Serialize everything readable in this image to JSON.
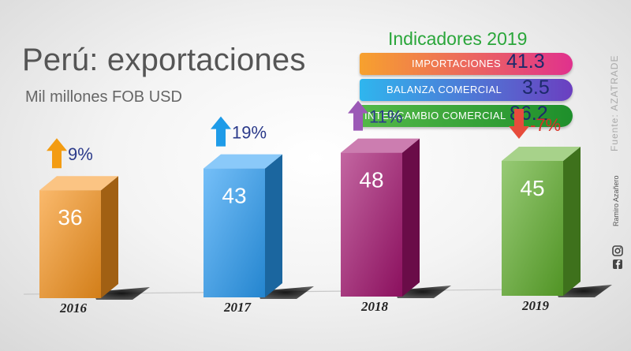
{
  "title": "Perú: exportaciones",
  "subtitle": "Mil millones FOB USD",
  "indicators": {
    "header": "Indicadores 2019",
    "items": [
      {
        "label": "IMPORTACIONES",
        "value": "41.3",
        "color_from": "#f7a12e",
        "color_to": "#e0318d"
      },
      {
        "label": "BALANZA COMERCIAL",
        "value": "3.5",
        "color_from": "#2fb6ee",
        "color_to": "#6b3fc0"
      },
      {
        "label": "INTERCAMBIO COMERCIAL",
        "value": "86.2",
        "color_from": "#54b948",
        "color_to": "#1e8f2b"
      }
    ]
  },
  "source": "Fuente: AZATRADE",
  "author": "Ramiro Azañero",
  "icons": [
    "facebook-icon",
    "instagram-icon"
  ],
  "chart_data": {
    "type": "bar",
    "categories": [
      "2016",
      "2017",
      "2018",
      "2019"
    ],
    "values": [
      36,
      43,
      48,
      45
    ],
    "changes": [
      "9%",
      "19%",
      "11%",
      "-7%"
    ],
    "change_direction": [
      "up",
      "up",
      "up",
      "down"
    ],
    "colors": [
      "#f7941d",
      "#2a9df4",
      "#a3136f",
      "#5fae2b"
    ],
    "arrow_colors": [
      "#f39c12",
      "#1e9be8",
      "#9b59b6",
      "#e74c3c"
    ],
    "change_text_colors": [
      "#2b3a8a",
      "#2b3a8a",
      "#2b3a8a",
      "#d93025"
    ]
  }
}
